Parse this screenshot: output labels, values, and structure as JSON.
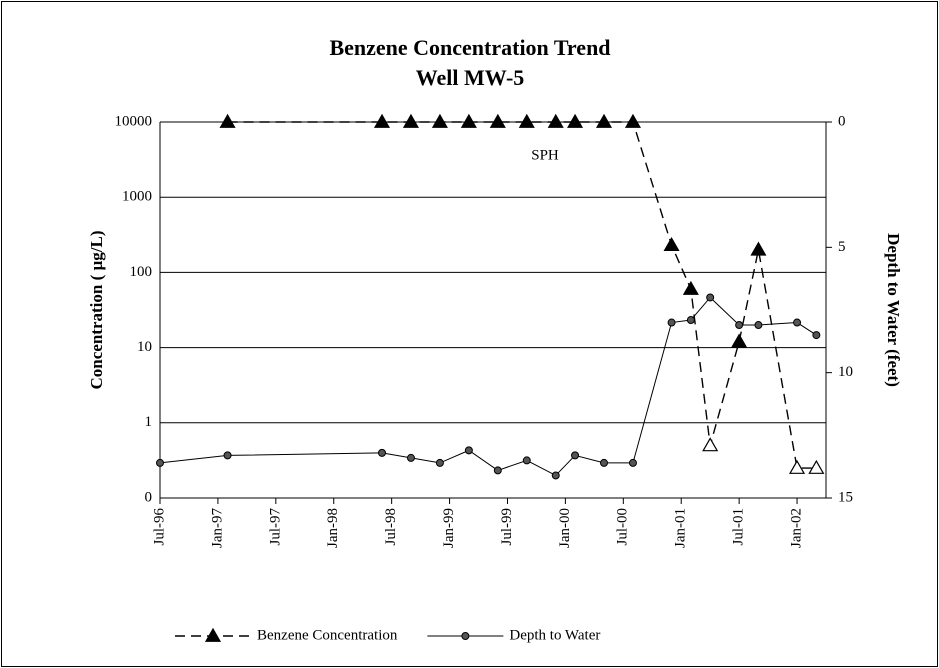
{
  "chart_data": {
    "type": "line",
    "title": [
      "Benzene Concentration Trend",
      "Well MW-5"
    ],
    "y_label": "Concentration ( µg/L)",
    "y2_label": "Depth to Water (feet)",
    "annotation": "SPH",
    "xlim": [
      "1996-07",
      "2002-04"
    ],
    "xticks": [
      {
        "value": "1996-07",
        "label": "Jul-96"
      },
      {
        "value": "1997-01",
        "label": "Jan-97"
      },
      {
        "value": "1997-07",
        "label": "Jul-97"
      },
      {
        "value": "1998-01",
        "label": "Jan-98"
      },
      {
        "value": "1998-07",
        "label": "Jul-98"
      },
      {
        "value": "1999-01",
        "label": "Jan-99"
      },
      {
        "value": "1999-07",
        "label": "Jul-99"
      },
      {
        "value": "2000-01",
        "label": "Jan-00"
      },
      {
        "value": "2000-07",
        "label": "Jul-00"
      },
      {
        "value": "2001-01",
        "label": "Jan-01"
      },
      {
        "value": "2001-07",
        "label": "Jul-01"
      },
      {
        "value": "2002-01",
        "label": "Jan-02"
      }
    ],
    "ylim": [
      0.1,
      10000
    ],
    "log_scale": true,
    "yticks": [
      {
        "value": 0.1,
        "label": "0"
      },
      1,
      10,
      100,
      1000,
      10000
    ],
    "y2lim": [
      15,
      0
    ],
    "y2ticks": [
      0,
      5,
      10,
      15
    ],
    "grid": true,
    "legend": "bottom",
    "series": [
      {
        "name": "Benzene Concentration",
        "color": "#000000",
        "dash": true,
        "marker": "triangle",
        "x": [
          "1997-02",
          "1998-06",
          "1998-09",
          "1998-12",
          "1999-03",
          "1999-06",
          "1999-09",
          "1999-12",
          "2000-02",
          "2000-05",
          "2000-08",
          "2000-12",
          "2001-02",
          "2001-04",
          "2001-07",
          "2001-09",
          "2002-01",
          "2002-03"
        ],
        "values": [
          10000,
          10000,
          10000,
          10000,
          10000,
          10000,
          10000,
          10000,
          10000,
          10000,
          10000,
          230,
          60,
          0.5,
          12,
          200,
          0.25,
          0.25
        ],
        "hollow": [
          false,
          false,
          false,
          false,
          false,
          false,
          false,
          false,
          false,
          false,
          false,
          false,
          false,
          true,
          false,
          false,
          true,
          true
        ]
      },
      {
        "name": "Depth to Water",
        "color": "#000000",
        "dash": false,
        "marker": "circle",
        "axis": "y2",
        "x": [
          "1996-07",
          "1997-02",
          "1998-06",
          "1998-09",
          "1998-12",
          "1999-03",
          "1999-06",
          "1999-09",
          "1999-12",
          "2000-02",
          "2000-05",
          "2000-08",
          "2000-12",
          "2001-02",
          "2001-04",
          "2001-07",
          "2001-09",
          "2002-01",
          "2002-03"
        ],
        "values": [
          13.6,
          13.3,
          13.2,
          13.4,
          13.6,
          13.1,
          13.9,
          13.5,
          14.1,
          13.3,
          13.6,
          13.6,
          8.0,
          7.9,
          7.0,
          8.1,
          8.1,
          8.0,
          8.5
        ]
      }
    ]
  }
}
